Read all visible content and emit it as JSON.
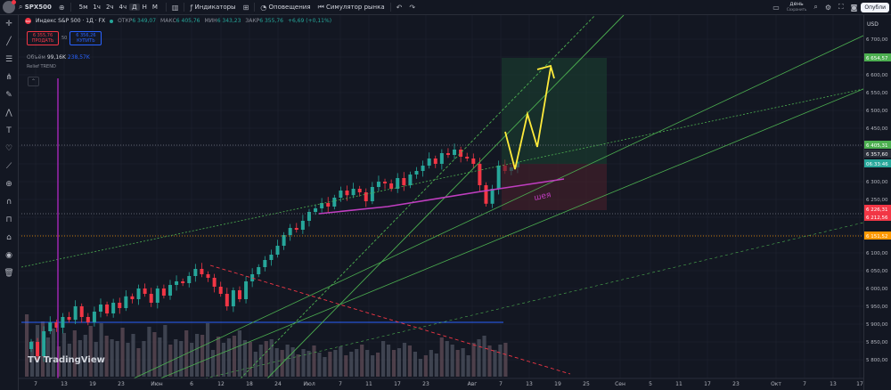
{
  "topbar": {
    "symbol": "SPX500",
    "timeframes": [
      "5м",
      "1ч",
      "2ч",
      "4ч",
      "Д",
      "Н",
      "М"
    ],
    "active_timeframe": "Д",
    "indicators_label": "Индикаторы",
    "alerts_label": "Оповещения",
    "replay_label": "Симулятор рынка",
    "period_label": "день",
    "period_sub": "Сохранить",
    "publish_label": "Опубли"
  },
  "header": {
    "title": "Индекс S&P 500 · 1Д · FX",
    "flag_text": "500",
    "open_label": "ОТКР",
    "open_value": "6 349,07",
    "high_label": "МАКС",
    "high_value": "6 405,76",
    "low_label": "МИН",
    "low_value": "6 343,23",
    "close_label": "ЗАКР",
    "close_value": "6 355,76",
    "change_value": "+6,69 (+0,11%)"
  },
  "trade": {
    "sell_price": "6 355,76",
    "sell_label": "ПРОДАТЬ",
    "spread": "50",
    "buy_price": "6 356,26",
    "buy_label": "КУПИТЬ"
  },
  "volume": {
    "label": "Объём",
    "value1": "99,16K",
    "value2": "238,57K"
  },
  "indicator_name": "Relief TREND",
  "annotation_text": "шея",
  "logo_text": "TradingView",
  "currency": "USD",
  "price_axis": {
    "ticks": [
      "6 700,00",
      "6 650,00",
      "6 600,00",
      "6 550,00",
      "6 500,00",
      "6 450,00",
      "6 400,00",
      "6 350,00",
      "6 300,00",
      "6 250,00",
      "6 200,00",
      "6 150,00",
      "6 100,00",
      "6 050,00",
      "6 000,00",
      "5 950,00",
      "5 900,00",
      "5 850,00",
      "5 800,00"
    ],
    "labels": [
      {
        "text": "6 654,57",
        "color": "#4caf50"
      },
      {
        "text": "6 405,31",
        "color": "#4caf50"
      },
      {
        "text": "6 357,60",
        "color": "#2a2e39"
      },
      {
        "text": "06:33:46",
        "color": "#26a69a"
      },
      {
        "text": "6 226,31",
        "color": "#f23645"
      },
      {
        "text": "6 212,56",
        "color": "#f23645"
      },
      {
        "text": "6 151,52",
        "color": "#ff9800"
      }
    ]
  },
  "time_axis": {
    "labels": [
      "7",
      "13",
      "19",
      "23",
      "Июн",
      "6",
      "12",
      "18",
      "24",
      "Июл",
      "7",
      "11",
      "17",
      "23",
      "Авг",
      "7",
      "13",
      "19",
      "25",
      "Сен",
      "5",
      "11",
      "17",
      "23",
      "Окт",
      "7",
      "13",
      "17"
    ]
  }
}
